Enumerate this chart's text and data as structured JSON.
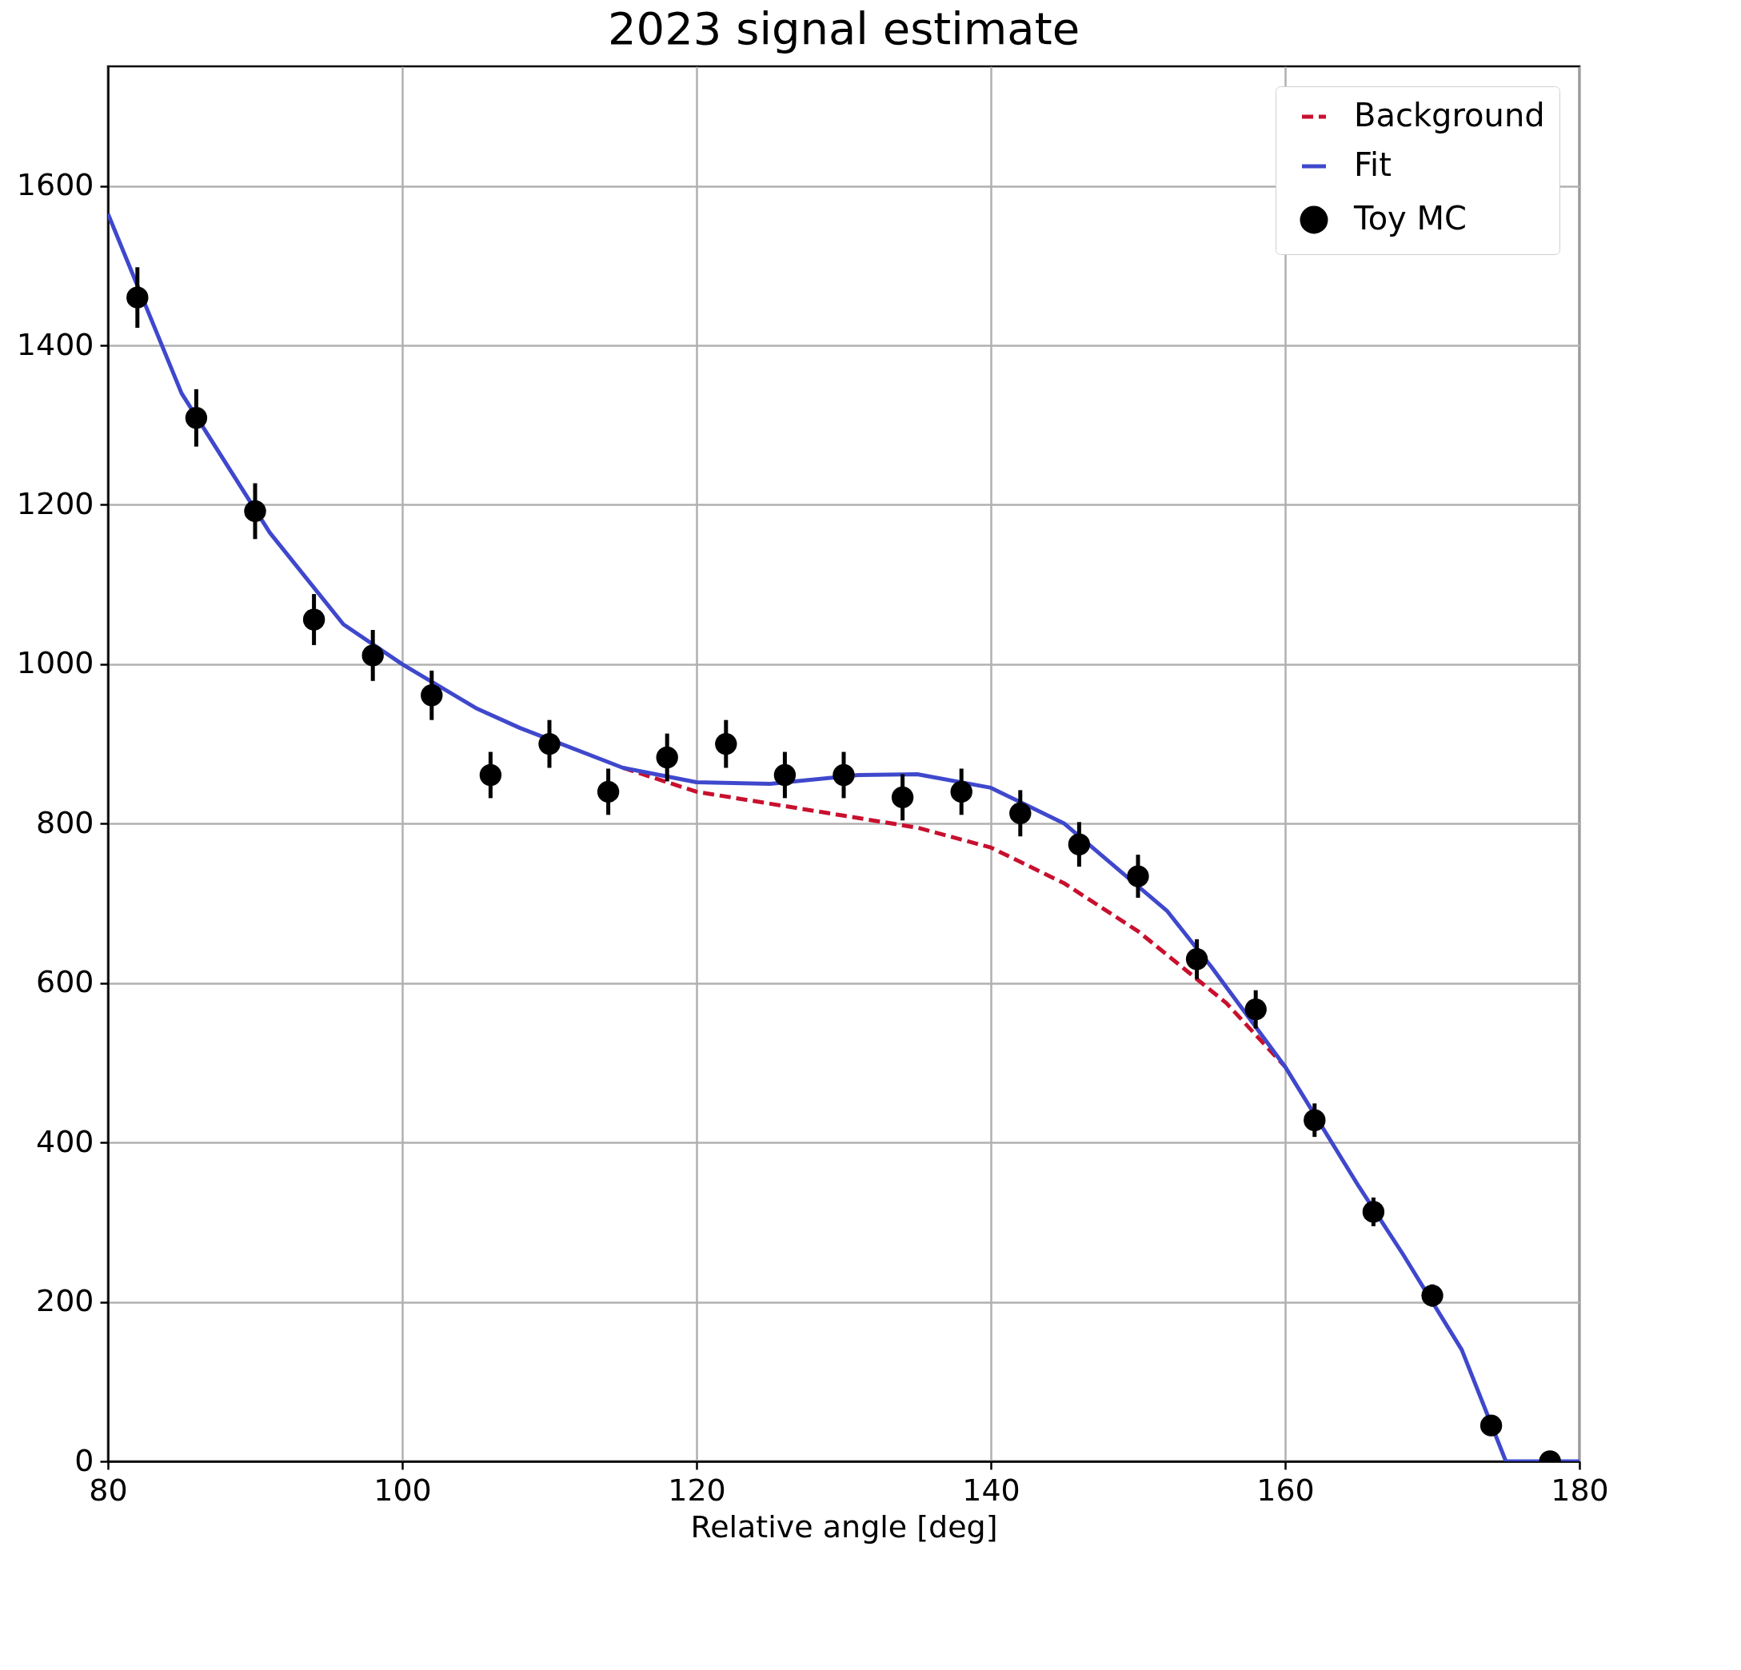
{
  "chart_data": {
    "type": "line",
    "title": "2023 signal estimate",
    "xlabel": "Relative angle [deg]",
    "xlim": [
      80,
      180
    ],
    "xticks": [
      80,
      100,
      120,
      140,
      160,
      180
    ],
    "ylim": [
      0,
      1750
    ],
    "yticks": [
      0,
      200,
      400,
      600,
      800,
      1000,
      1200,
      1400,
      1600
    ],
    "grid": true,
    "legend": "top right",
    "series": [
      {
        "name": "Background",
        "type": "line",
        "line_style": "dashed",
        "color": "#c8102e",
        "x": [
          115,
          120,
          125,
          130,
          135,
          140,
          145,
          150,
          156,
          160
        ],
        "values": [
          870,
          840,
          825,
          810,
          795,
          770,
          725,
          665,
          575,
          495
        ]
      },
      {
        "name": "Fit",
        "type": "line",
        "line_style": "solid",
        "color": "#3f48cc",
        "x": [
          80,
          85,
          91,
          96,
          100,
          105,
          108,
          115,
          120,
          125,
          131,
          135,
          140,
          145,
          152,
          155,
          160,
          165,
          168,
          172,
          175,
          180
        ],
        "values": [
          1565,
          1340,
          1165,
          1050,
          1000,
          945,
          920,
          870,
          852,
          850,
          861,
          862,
          845,
          800,
          690,
          620,
          495,
          345,
          260,
          140,
          0,
          0
        ]
      },
      {
        "name": "Toy MC",
        "type": "scatter",
        "marker": "circle",
        "color": "#000000",
        "x": [
          82,
          86,
          90,
          94,
          98,
          102,
          106,
          110,
          114,
          118,
          122,
          126,
          130,
          134,
          138,
          142,
          146,
          150,
          154,
          158,
          162,
          166,
          170,
          174,
          178
        ],
        "values": [
          1460,
          1309,
          1192,
          1056,
          1011,
          961,
          861,
          900,
          840,
          883,
          900,
          861,
          861,
          833,
          840,
          813,
          774,
          734,
          630,
          567,
          428,
          313,
          208,
          45,
          0
        ],
        "errors": [
          38,
          36,
          35,
          32,
          32,
          31,
          29,
          30,
          29,
          30,
          30,
          29,
          29,
          29,
          29,
          29,
          28,
          27,
          25,
          24,
          21,
          18,
          14,
          7,
          null
        ]
      }
    ]
  }
}
